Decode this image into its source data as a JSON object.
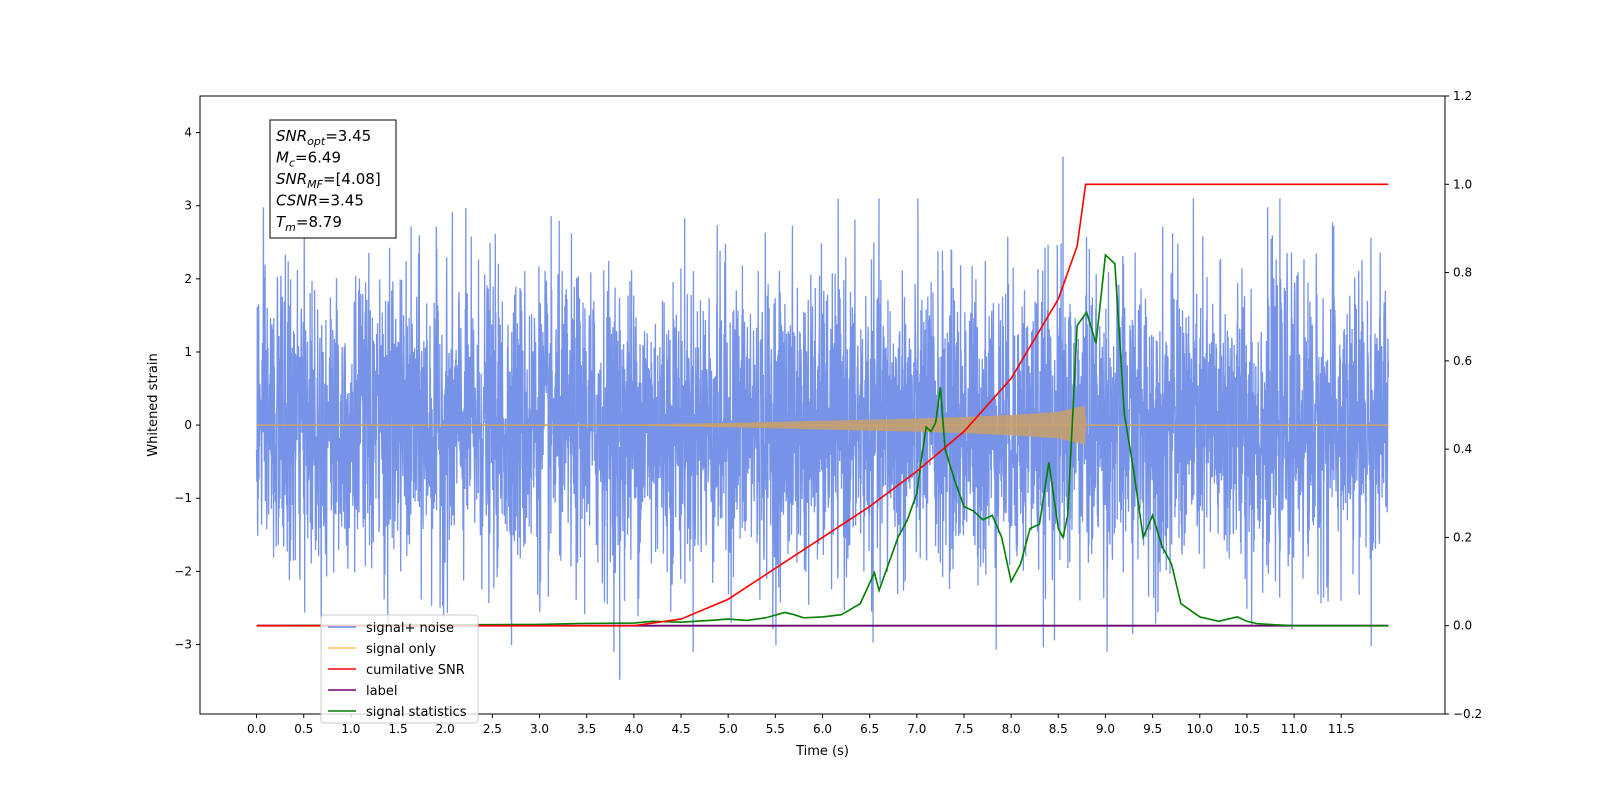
{
  "chart_data": {
    "type": "line",
    "title": "",
    "xlabel": "Time (s)",
    "ylabel_left": "Whitened strain",
    "ylabel_right": "",
    "xlim": [
      -0.6,
      12.6
    ],
    "ylim_left": [
      -3.95,
      4.5
    ],
    "ylim_right": [
      -0.2,
      1.2
    ],
    "x_ticks": [
      "0.0",
      "0.5",
      "1.0",
      "1.5",
      "2.0",
      "2.5",
      "3.0",
      "3.5",
      "4.0",
      "4.5",
      "5.0",
      "5.5",
      "6.0",
      "6.5",
      "7.0",
      "7.5",
      "8.0",
      "8.5",
      "9.0",
      "9.5",
      "10.0",
      "10.5",
      "11.0",
      "11.5"
    ],
    "y_ticks_left": [
      "−3",
      "−2",
      "−1",
      "0",
      "1",
      "2",
      "3",
      "4"
    ],
    "y_ticks_right": [
      "−0.2",
      "0.0",
      "0.2",
      "0.4",
      "0.6",
      "0.8",
      "1.0",
      "1.2"
    ],
    "grid": false,
    "legend_placement": "lower-left",
    "info_box": {
      "snr_opt": {
        "base": "SNR",
        "sub": "opt",
        "value": "=3.45"
      },
      "mc": {
        "base": "M",
        "sub": "c",
        "value": "=6.49"
      },
      "snr_mf": {
        "base": "SNR",
        "sub": "MF",
        "value": "=[4.08]"
      },
      "csnr": {
        "base": "CSNR",
        "value": "=3.45"
      },
      "tm": {
        "base": "T",
        "sub": "m",
        "value": "=8.79"
      }
    },
    "series": [
      {
        "name": "signal+ noise",
        "axis": "left",
        "color": "#6a8ae6",
        "description_range": [
          0.0,
          12.0
        ],
        "typical_amplitude_std": 1.0,
        "peak_max": 3.67,
        "peak_min": -3.48
      },
      {
        "name": "signal only",
        "axis": "left",
        "color": "#ffc060",
        "envelope": {
          "x": [
            0.0,
            4.0,
            5.0,
            6.0,
            7.0,
            7.5,
            8.0,
            8.5,
            8.79,
            8.8,
            12.0
          ],
          "amp": [
            0.0,
            0.01,
            0.03,
            0.06,
            0.09,
            0.11,
            0.14,
            0.18,
            0.27,
            0.0,
            0.0
          ]
        }
      },
      {
        "name": "cumilative SNR",
        "axis": "right",
        "color": "#ff0000",
        "x": [
          0.0,
          4.0,
          4.5,
          5.0,
          5.5,
          6.0,
          6.5,
          7.0,
          7.5,
          8.0,
          8.5,
          8.7,
          8.79,
          8.8,
          11.5,
          12.0
        ],
        "values": [
          0.0,
          0.0,
          0.015,
          0.06,
          0.13,
          0.2,
          0.27,
          0.35,
          0.44,
          0.56,
          0.74,
          0.86,
          1.0,
          1.0,
          1.0,
          1.0
        ]
      },
      {
        "name": "label",
        "axis": "right",
        "color": "#6a006a",
        "x": [
          0.0,
          12.0
        ],
        "values": [
          0.0,
          0.0
        ]
      },
      {
        "name": "signal statistics",
        "axis": "right",
        "color": "#007f00",
        "x": [
          0.0,
          3.0,
          3.4,
          4.0,
          4.2,
          4.5,
          4.8,
          5.0,
          5.2,
          5.4,
          5.6,
          5.7,
          5.8,
          6.0,
          6.2,
          6.4,
          6.55,
          6.6,
          6.7,
          6.8,
          6.9,
          7.0,
          7.05,
          7.1,
          7.15,
          7.2,
          7.25,
          7.3,
          7.4,
          7.5,
          7.6,
          7.7,
          7.8,
          7.9,
          8.0,
          8.1,
          8.2,
          8.3,
          8.4,
          8.5,
          8.55,
          8.6,
          8.7,
          8.8,
          8.9,
          9.0,
          9.1,
          9.2,
          9.3,
          9.4,
          9.5,
          9.6,
          9.7,
          9.8,
          10.0,
          10.2,
          10.4,
          10.5,
          10.6,
          10.8,
          11.0,
          12.0
        ],
        "values": [
          0.0,
          0.003,
          0.005,
          0.006,
          0.01,
          0.008,
          0.012,
          0.015,
          0.012,
          0.018,
          0.03,
          0.025,
          0.018,
          0.02,
          0.025,
          0.05,
          0.12,
          0.08,
          0.14,
          0.2,
          0.24,
          0.3,
          0.38,
          0.45,
          0.44,
          0.46,
          0.54,
          0.4,
          0.33,
          0.27,
          0.26,
          0.24,
          0.25,
          0.2,
          0.1,
          0.14,
          0.22,
          0.23,
          0.37,
          0.22,
          0.2,
          0.25,
          0.68,
          0.71,
          0.64,
          0.84,
          0.82,
          0.48,
          0.35,
          0.2,
          0.25,
          0.18,
          0.14,
          0.05,
          0.02,
          0.01,
          0.02,
          0.01,
          0.005,
          0.002,
          0.0,
          0.0
        ]
      }
    ]
  }
}
